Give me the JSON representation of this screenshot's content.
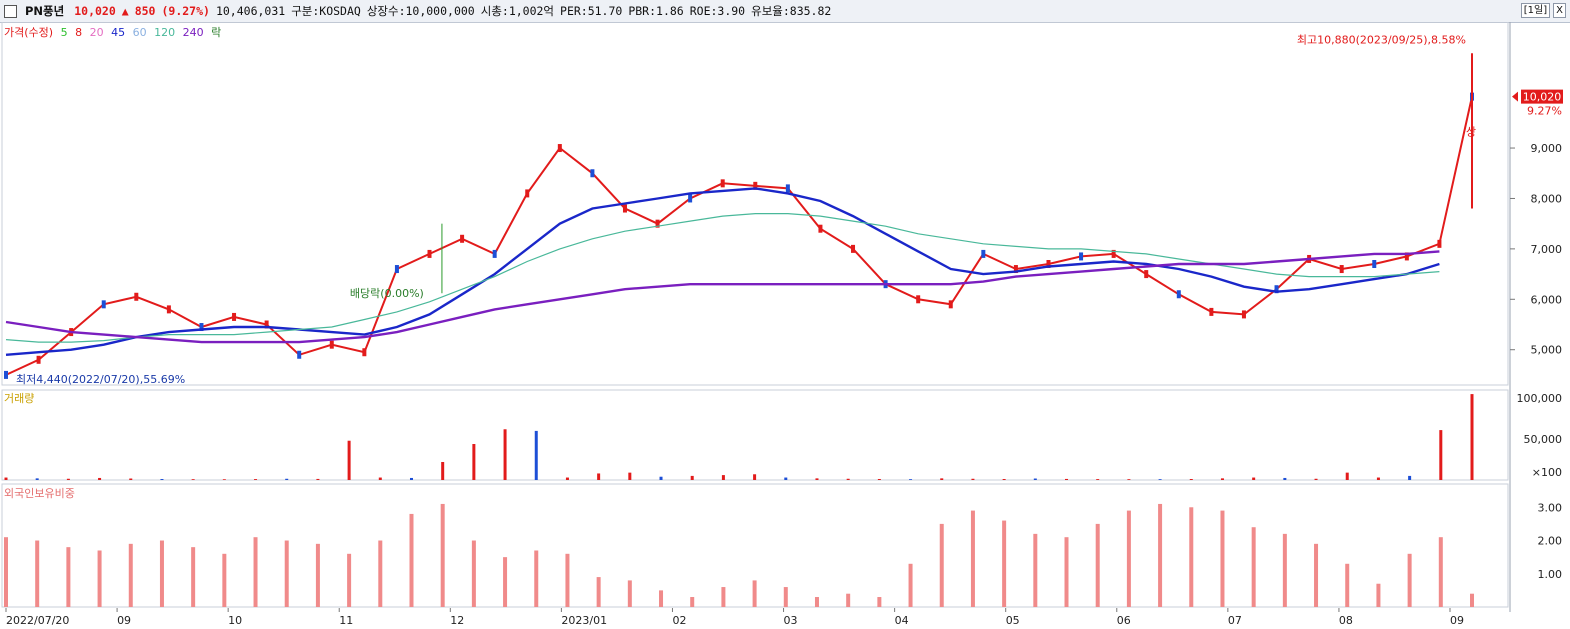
{
  "header": {
    "name": "PN풍년",
    "price": "10,020",
    "change_arrow": "▲",
    "change": "850",
    "change_pct": "(9.27%)",
    "volume": "10,406,031",
    "market": "구분:KOSDAQ",
    "shares": "상장수:10,000,000",
    "mcap": "시총:1,002억",
    "per": "PER:51.70",
    "pbr": "PBR:1.86",
    "roe": "ROE:3.90",
    "float": "유보율:835.82",
    "period": "[1일]",
    "close_btn": "X"
  },
  "colors": {
    "up": "#e21b1b",
    "down": "#1d4fd6",
    "ma5": "#2cbf2c",
    "ma8": "#e21b1b",
    "ma20": "#e46ec2",
    "ma45": "#1a27c9",
    "ma60": "#8ab0e0",
    "ma120": "#49b89a",
    "ma240": "#7a1fbf",
    "foreign": "#f08a8a"
  },
  "legend": {
    "price": "가격(수정)",
    "ma5": "5",
    "ma8": "8",
    "ma20": "20",
    "ma45": "45",
    "ma60": "60",
    "ma120": "120",
    "ma240": "240",
    "rak": "락"
  },
  "annotations": {
    "high": "최고10,880(2023/09/25),8.58%",
    "low": "최저4,440(2022/07/20),55.69%",
    "dividend": "배당락(0.00%)",
    "limit_up": "상",
    "last_price": "10,020",
    "last_pct": "9.27%"
  },
  "chart_data": [
    {
      "type": "line",
      "title": "",
      "y_ticks": [
        "9,000",
        "8,000",
        "7,000",
        "6,000",
        "5,000"
      ],
      "ylim": [
        4300,
        11500
      ],
      "x_ticks": [
        "2022/07/20",
        "09",
        "10",
        "11",
        "12",
        "2023/01",
        "02",
        "03",
        "04",
        "05",
        "06",
        "07",
        "08",
        "09"
      ],
      "series": [
        {
          "name": "가격(수정)",
          "values": [
            4500,
            4800,
            5350,
            5900,
            6050,
            5800,
            5450,
            5650,
            5500,
            4900,
            5100,
            4950,
            6600,
            6900,
            7200,
            6900,
            8100,
            9000,
            8500,
            7800,
            7500,
            8000,
            8300,
            8250,
            8200,
            7400,
            7000,
            6300,
            6000,
            5900,
            6900,
            6600,
            6700,
            6850,
            6900,
            6500,
            6100,
            5750,
            5700,
            6200,
            6800,
            6600,
            6700,
            6850,
            7100,
            10020
          ]
        },
        {
          "name": "45",
          "values": [
            4900,
            4950,
            5000,
            5100,
            5250,
            5350,
            5400,
            5450,
            5450,
            5400,
            5350,
            5300,
            5450,
            5700,
            6100,
            6500,
            7000,
            7500,
            7800,
            7900,
            8000,
            8100,
            8150,
            8200,
            8100,
            7950,
            7650,
            7300,
            6950,
            6600,
            6500,
            6550,
            6650,
            6700,
            6750,
            6700,
            6600,
            6450,
            6250,
            6150,
            6200,
            6300,
            6400,
            6500,
            6700
          ]
        },
        {
          "name": "120",
          "values": [
            5200,
            5150,
            5150,
            5180,
            5250,
            5300,
            5300,
            5300,
            5350,
            5400,
            5450,
            5600,
            5750,
            5950,
            6200,
            6450,
            6750,
            7000,
            7200,
            7350,
            7450,
            7550,
            7650,
            7700,
            7700,
            7650,
            7550,
            7450,
            7300,
            7200,
            7100,
            7050,
            7000,
            7000,
            6950,
            6900,
            6800,
            6700,
            6600,
            6500,
            6450,
            6450,
            6450,
            6500,
            6550
          ]
        },
        {
          "name": "240",
          "values": [
            5550,
            5450,
            5350,
            5300,
            5250,
            5200,
            5150,
            5150,
            5150,
            5150,
            5200,
            5250,
            5350,
            5500,
            5650,
            5800,
            5900,
            6000,
            6100,
            6200,
            6250,
            6300,
            6300,
            6300,
            6300,
            6300,
            6300,
            6300,
            6300,
            6300,
            6350,
            6450,
            6500,
            6550,
            6600,
            6650,
            6700,
            6700,
            6700,
            6750,
            6800,
            6850,
            6900,
            6900,
            6950
          ]
        }
      ]
    },
    {
      "type": "bar",
      "title": "거래량",
      "y_ticks": [
        "100,000",
        "50,000",
        "×100"
      ],
      "ylim": [
        0,
        110000
      ],
      "values": [
        3000,
        2000,
        1500,
        2500,
        1800,
        1200,
        1000,
        900,
        1100,
        1500,
        1300,
        48000,
        3000,
        2500,
        22000,
        44000,
        62000,
        60000,
        3000,
        8000,
        9000,
        4000,
        5000,
        6000,
        7000,
        3000,
        2000,
        1500,
        1200,
        1000,
        2000,
        1500,
        1200,
        1800,
        1300,
        1100,
        1000,
        1000,
        1200,
        2000,
        3000,
        2500,
        1500,
        9000,
        3000,
        5000,
        61000,
        105000
      ]
    },
    {
      "type": "bar",
      "title": "외국인보유비중",
      "y_ticks": [
        "3.00",
        "2.00",
        "1.00"
      ],
      "ylim": [
        0,
        3.7
      ],
      "values": [
        2.1,
        2.0,
        1.8,
        1.7,
        1.9,
        2.0,
        1.8,
        1.6,
        2.1,
        2.0,
        1.9,
        1.6,
        2.0,
        2.8,
        3.1,
        2.0,
        1.5,
        1.7,
        1.6,
        0.9,
        0.8,
        0.5,
        0.3,
        0.6,
        0.8,
        0.6,
        0.3,
        0.4,
        0.3,
        1.3,
        2.5,
        2.9,
        2.6,
        2.2,
        2.1,
        2.5,
        2.9,
        3.1,
        3.0,
        2.9,
        2.4,
        2.2,
        1.9,
        1.3,
        0.7,
        1.6,
        2.1,
        0.4
      ]
    }
  ]
}
